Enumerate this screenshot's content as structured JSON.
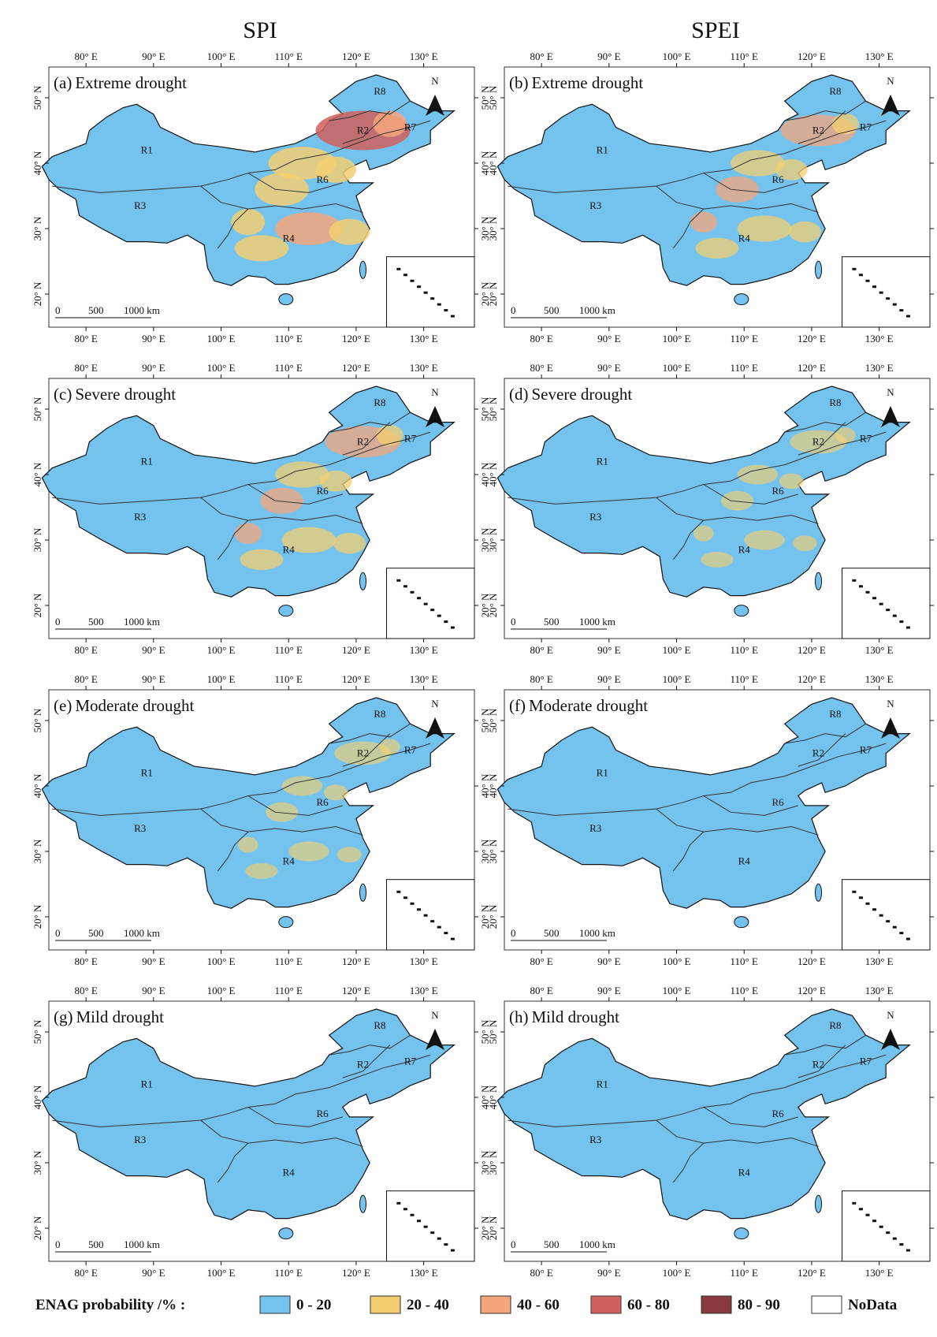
{
  "columns": [
    "SPI",
    "SPEI"
  ],
  "panels": [
    {
      "label": "(a)",
      "title": "Extreme drought"
    },
    {
      "label": "(b)",
      "title": "Extreme drought"
    },
    {
      "label": "(c)",
      "title": "Severe drought"
    },
    {
      "label": "(d)",
      "title": "Severe drought"
    },
    {
      "label": "(e)",
      "title": "Moderate drought"
    },
    {
      "label": "(f)",
      "title": "Moderate drought"
    },
    {
      "label": "(g)",
      "title": "Mild drought"
    },
    {
      "label": "(h)",
      "title": "Mild drought"
    }
  ],
  "regions": [
    "R1",
    "R2",
    "R3",
    "R4",
    "R6",
    "R7",
    "R8"
  ],
  "north": "N",
  "scale_bar": [
    "0",
    "500",
    "1000 km"
  ],
  "lonticks": [
    {
      "value": 80,
      "label": "80° E"
    },
    {
      "value": 90,
      "label": "90° E"
    },
    {
      "value": 100,
      "label": "100° E"
    },
    {
      "value": 110,
      "label": "110° E"
    },
    {
      "value": 120,
      "label": "120° E"
    },
    {
      "value": 130,
      "label": "130° E"
    }
  ],
  "latticks": [
    {
      "value": 20,
      "label": "20° N"
    },
    {
      "value": 30,
      "label": "30° N"
    },
    {
      "value": 40,
      "label": "40° N"
    },
    {
      "value": 50,
      "label": "50° N"
    }
  ],
  "legend": {
    "title": "ENAG probability /%  :",
    "items": [
      {
        "label": "0 - 20",
        "color": "#74c3ee"
      },
      {
        "label": "20 - 40",
        "color": "#f3cf72"
      },
      {
        "label": "40 - 60",
        "color": "#f4a67b"
      },
      {
        "label": "60 - 80",
        "color": "#d0605c"
      },
      {
        "label": "80 - 90",
        "color": "#8a3a3c"
      },
      {
        "label": "NoData",
        "color": "#ffffff"
      }
    ]
  }
}
